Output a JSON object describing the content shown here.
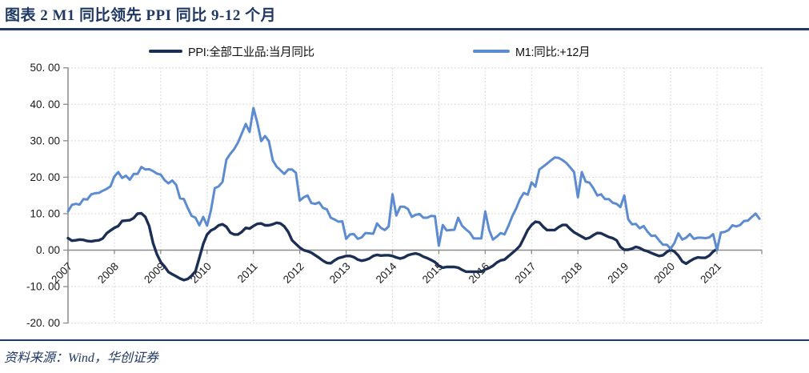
{
  "figure": {
    "title": "图表 2  M1 同比领先 PPI 同比 9-12 个月",
    "source": "资料来源：Wind，华创证券"
  },
  "colors": {
    "accent_navy": "#1F3864",
    "ppi_line": "#1B2F55",
    "m1_line": "#5C8BD0",
    "axis_gray": "#8C8C8C",
    "grid_gray": "#D6D6D6",
    "label_black": "#1a1a1a"
  },
  "chart_data": {
    "type": "line",
    "title": "M1 同比领先 PPI 同比 9-12 个月",
    "xlabel": "",
    "ylabel": "",
    "ylim": [
      -20,
      50
    ],
    "grid": "dotted",
    "legend_position": "top",
    "x_unit": "month",
    "x_start": "2007-01",
    "x_ticks": [
      "2007",
      "2008",
      "2009",
      "2010",
      "2011",
      "2012",
      "2013",
      "2014",
      "2015",
      "2016",
      "2017",
      "2018",
      "2019",
      "2020",
      "2021"
    ],
    "y_ticks": [
      {
        "v": 50,
        "label": "50. 00"
      },
      {
        "v": 40,
        "label": "40. 00"
      },
      {
        "v": 30,
        "label": "30. 00"
      },
      {
        "v": 20,
        "label": "20. 00"
      },
      {
        "v": 10,
        "label": "10. 00"
      },
      {
        "v": 0,
        "label": "0. 00"
      },
      {
        "v": -10,
        "label": "-10. 00"
      },
      {
        "v": -20,
        "label": "-20. 00"
      }
    ],
    "series": [
      {
        "name": "PPI:全部工业品:当月同比",
        "color": "#1B2F55",
        "start": "2007-01",
        "values": [
          3.3,
          2.6,
          2.7,
          2.9,
          2.8,
          2.5,
          2.4,
          2.6,
          2.7,
          3.2,
          4.6,
          5.4,
          6.1,
          6.6,
          8.0,
          8.1,
          8.2,
          8.8,
          10.0,
          10.1,
          9.1,
          6.6,
          2.0,
          -1.1,
          -3.3,
          -4.5,
          -6.0,
          -6.6,
          -7.2,
          -7.8,
          -8.2,
          -7.9,
          -7.0,
          -5.8,
          -2.1,
          1.7,
          4.3,
          5.4,
          5.9,
          6.8,
          7.1,
          6.4,
          4.8,
          4.3,
          4.3,
          5.0,
          6.1,
          5.9,
          6.6,
          7.2,
          7.3,
          6.8,
          6.8,
          7.1,
          7.5,
          7.3,
          6.5,
          5.0,
          2.7,
          1.7,
          0.7,
          0.0,
          -0.3,
          -0.7,
          -1.4,
          -2.1,
          -2.9,
          -3.5,
          -3.6,
          -2.8,
          -2.2,
          -1.9,
          -1.6,
          -1.6,
          -1.9,
          -2.6,
          -2.9,
          -2.7,
          -2.3,
          -1.6,
          -1.3,
          -1.5,
          -1.4,
          -1.4,
          -1.6,
          -2.0,
          -2.3,
          -2.0,
          -1.4,
          -1.1,
          -0.9,
          -1.2,
          -1.8,
          -2.2,
          -2.7,
          -3.3,
          -4.3,
          -4.8,
          -4.6,
          -4.6,
          -4.6,
          -4.8,
          -5.4,
          -5.9,
          -5.9,
          -5.9,
          -5.9,
          -5.9,
          -5.3,
          -4.9,
          -4.3,
          -3.4,
          -2.8,
          -2.6,
          -1.7,
          -0.8,
          0.1,
          1.2,
          3.3,
          5.5,
          6.9,
          7.8,
          7.6,
          6.4,
          5.5,
          5.5,
          5.5,
          6.3,
          6.9,
          6.9,
          5.8,
          4.9,
          4.3,
          3.7,
          3.1,
          3.4,
          4.1,
          4.7,
          4.6,
          4.1,
          3.6,
          3.3,
          2.7,
          0.9,
          0.1,
          0.1,
          0.4,
          0.9,
          0.6,
          0.0,
          -0.3,
          -0.8,
          -1.2,
          -1.6,
          -1.4,
          -0.5,
          0.1,
          -0.4,
          -1.5,
          -3.1,
          -3.7,
          -3.0,
          -2.4,
          -2.0,
          -2.1,
          -2.1,
          -1.5,
          -0.4,
          0.3
        ]
      },
      {
        "name": "M1:同比:+12月",
        "color": "#5C8BD0",
        "start": "2007-01",
        "values": [
          10.6,
          12.4,
          12.7,
          12.5,
          14.0,
          13.9,
          15.3,
          15.6,
          15.7,
          16.3,
          16.8,
          17.5,
          20.2,
          21.4,
          19.8,
          20.4,
          19.3,
          20.9,
          20.9,
          22.8,
          22.1,
          22.2,
          21.7,
          21.0,
          20.7,
          19.2,
          18.3,
          19.1,
          17.9,
          14.2,
          14.0,
          11.5,
          9.4,
          8.9,
          6.8,
          9.1,
          6.7,
          10.9,
          17.0,
          17.5,
          18.7,
          24.8,
          26.4,
          27.7,
          29.5,
          32.0,
          34.6,
          32.4,
          39.0,
          35.0,
          29.9,
          31.3,
          29.9,
          24.6,
          22.9,
          21.9,
          20.9,
          22.1,
          22.1,
          21.2,
          13.6,
          14.5,
          15.0,
          12.9,
          12.7,
          13.1,
          11.6,
          11.2,
          8.9,
          8.4,
          7.8,
          7.9,
          3.1,
          4.3,
          4.4,
          3.1,
          3.5,
          4.7,
          4.6,
          4.5,
          7.3,
          6.1,
          5.5,
          6.5,
          15.3,
          9.5,
          11.9,
          11.9,
          11.3,
          9.1,
          9.7,
          9.9,
          8.9,
          8.9,
          9.4,
          9.3,
          1.2,
          6.9,
          5.4,
          5.5,
          5.6,
          8.9,
          6.7,
          5.7,
          4.8,
          3.2,
          3.2,
          3.2,
          10.6,
          5.6,
          2.9,
          3.7,
          4.7,
          4.3,
          6.6,
          9.3,
          11.4,
          14.0,
          15.7,
          15.2,
          18.6,
          17.4,
          22.1,
          22.9,
          23.7,
          24.6,
          25.4,
          25.3,
          24.7,
          23.9,
          22.7,
          21.4,
          14.5,
          21.4,
          18.8,
          18.5,
          17.0,
          15.0,
          15.3,
          14.0,
          14.0,
          13.0,
          12.7,
          11.8,
          15.0,
          8.5,
          7.1,
          7.2,
          6.0,
          6.6,
          5.1,
          3.9,
          4.0,
          2.7,
          1.5,
          1.5,
          0.4,
          2.0,
          4.6,
          2.9,
          3.4,
          4.4,
          3.1,
          3.4,
          3.4,
          3.3,
          3.5,
          4.4,
          0.0,
          4.8,
          5.0,
          5.5,
          6.8,
          6.5,
          6.9,
          8.0,
          8.1,
          9.1,
          10.0,
          8.6
        ]
      }
    ]
  }
}
